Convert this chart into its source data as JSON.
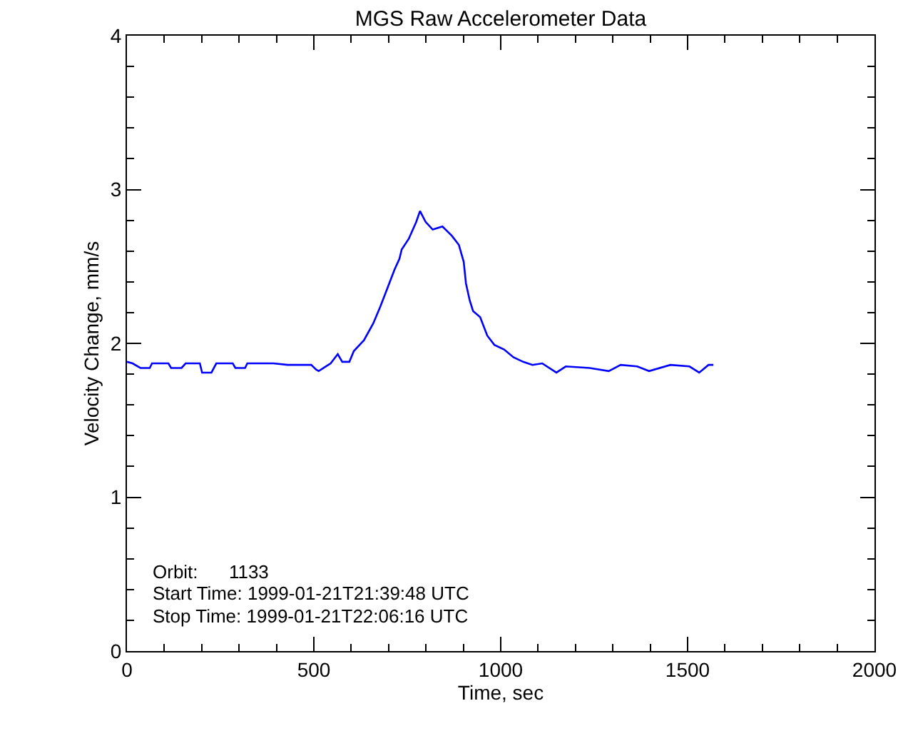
{
  "chart_data": {
    "type": "line",
    "title": "MGS Raw Accelerometer Data",
    "xlabel": "Time, sec",
    "ylabel": "Velocity Change, mm/s",
    "annotations": [
      "Orbit:      1133",
      "Start Time: 1999-01-21T21:39:48 UTC",
      "Stop Time: 1999-01-21T22:06:16 UTC"
    ],
    "x": [
      0,
      15,
      36,
      61,
      67,
      111,
      118,
      146,
      157,
      195,
      201,
      226,
      239,
      283,
      290,
      316,
      322,
      392,
      430,
      493,
      506,
      513,
      532,
      545,
      564,
      576,
      595,
      607,
      634,
      659,
      678,
      697,
      716,
      729,
      735,
      754,
      774,
      784,
      799,
      818,
      844,
      869,
      888,
      901,
      907,
      917,
      926,
      945,
      964,
      983,
      1009,
      1034,
      1060,
      1085,
      1111,
      1149,
      1174,
      1238,
      1289,
      1321,
      1365,
      1397,
      1454,
      1505,
      1531,
      1556,
      1569
    ],
    "series": [
      {
        "color": "#0000ff",
        "values": [
          1.88,
          1.87,
          1.84,
          1.84,
          1.87,
          1.87,
          1.84,
          1.84,
          1.87,
          1.87,
          1.81,
          1.81,
          1.87,
          1.87,
          1.84,
          1.84,
          1.87,
          1.87,
          1.86,
          1.86,
          1.83,
          1.82,
          1.85,
          1.87,
          1.93,
          1.88,
          1.88,
          1.95,
          2.02,
          2.13,
          2.24,
          2.36,
          2.48,
          2.55,
          2.61,
          2.68,
          2.79,
          2.86,
          2.79,
          2.74,
          2.76,
          2.7,
          2.64,
          2.53,
          2.39,
          2.28,
          2.21,
          2.17,
          2.05,
          1.99,
          1.96,
          1.91,
          1.88,
          1.86,
          1.87,
          1.81,
          1.85,
          1.84,
          1.82,
          1.86,
          1.85,
          1.82,
          1.86,
          1.85,
          1.81,
          1.86,
          1.86
        ]
      }
    ],
    "xlim": [
      0,
      2000
    ],
    "xticks": [
      0,
      500,
      1000,
      1500,
      2000
    ],
    "ylim": [
      0,
      4
    ],
    "yticks": [
      0,
      1,
      2,
      3,
      4
    ],
    "grid": false,
    "marker": "none",
    "line_style": "solid"
  }
}
